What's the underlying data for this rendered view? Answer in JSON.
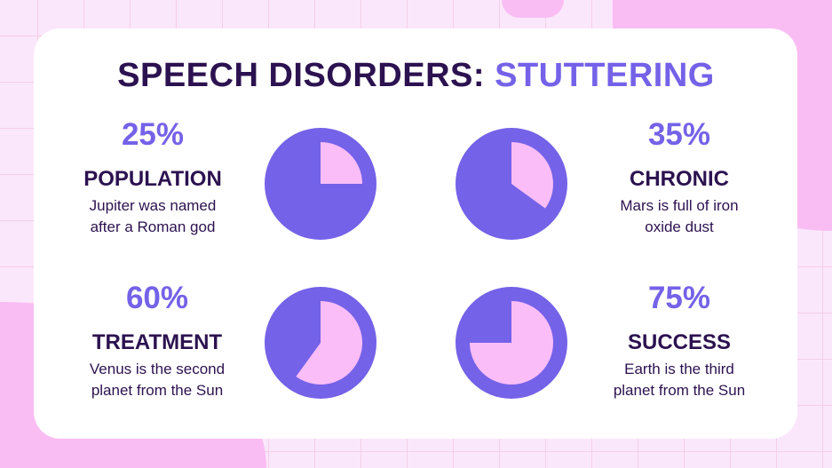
{
  "title": {
    "main": "SPEECH DISORDERS: ",
    "accent": "STUTTERING"
  },
  "colors": {
    "dark": "#2c1250",
    "accent": "#7462e8",
    "pie_base": "#7462e8",
    "pie_fill": "#fbbdf8",
    "background": "#fbe7fb"
  },
  "chart_data": {
    "type": "pie",
    "items": [
      {
        "percent_label": "25%",
        "value": 25,
        "label": "POPULATION",
        "desc": [
          "Jupiter was named",
          "after a Roman god"
        ]
      },
      {
        "percent_label": "35%",
        "value": 35,
        "label": "CHRONIC",
        "desc": [
          "Mars is full of iron",
          "oxide dust"
        ]
      },
      {
        "percent_label": "60%",
        "value": 60,
        "label": "TREATMENT",
        "desc": [
          "Venus is the second",
          "planet from the Sun"
        ]
      },
      {
        "percent_label": "75%",
        "value": 75,
        "label": "SUCCESS",
        "desc": [
          "Earth is the third",
          "planet from the Sun"
        ]
      }
    ]
  }
}
